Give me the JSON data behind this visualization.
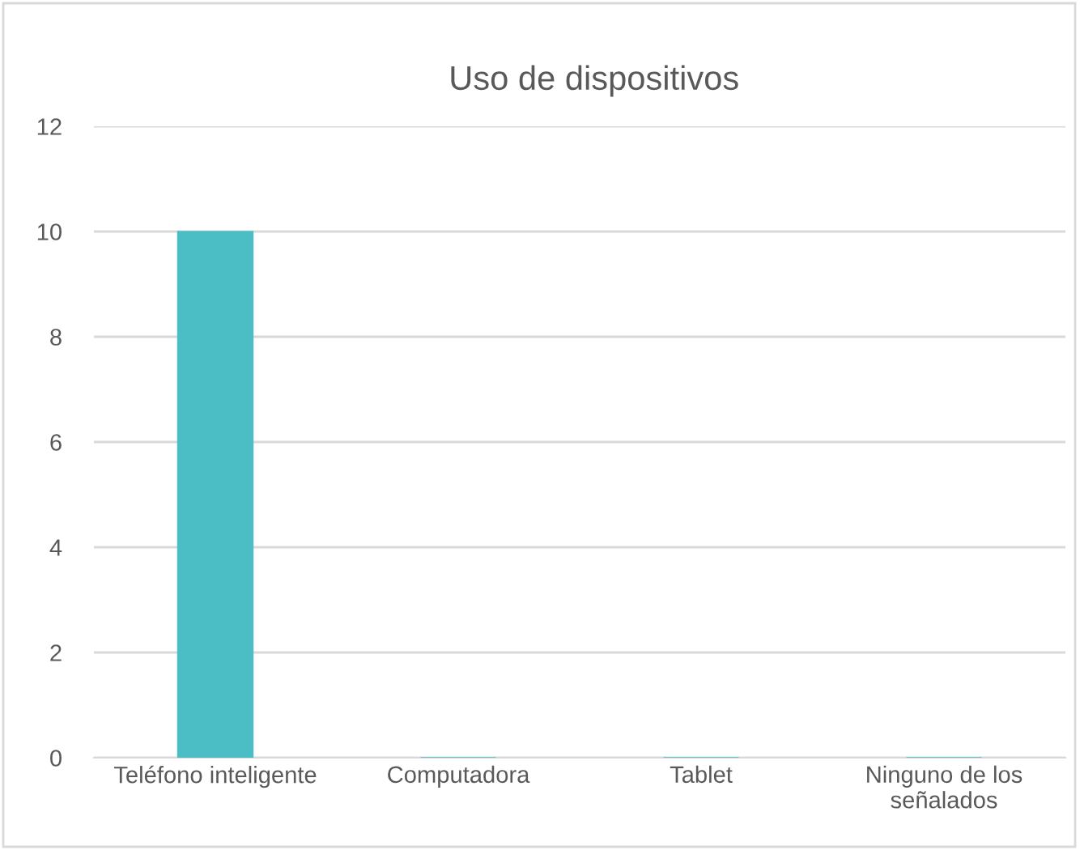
{
  "chart_data": {
    "type": "bar",
    "title": "Uso de dispositivos",
    "categories": [
      "Teléfono inteligente",
      "Computadora",
      "Tablet",
      "Ninguno de los\nseñalados"
    ],
    "values": [
      10,
      0,
      0,
      0
    ],
    "color": "#4bbdc5",
    "ylim": [
      0,
      12
    ],
    "yticks": [
      0,
      2,
      4,
      6,
      8,
      10,
      12
    ],
    "grid": "y",
    "legend": false
  }
}
